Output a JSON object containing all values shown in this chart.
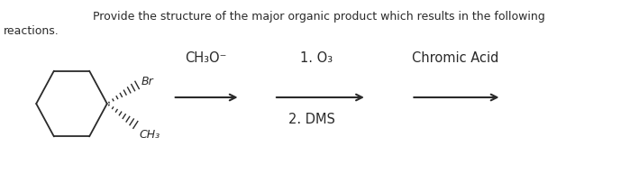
{
  "title_line1": "Provide the structure of the major organic product which results in the following",
  "title_line2": "reactions.",
  "background_color": "#ffffff",
  "text_color": "#2a2a2a",
  "reagent1": "CH₃O⁻",
  "reagent2_line1": "1. O₃",
  "reagent2_line2": "2. DMS",
  "reagent3": "Chromic Acid",
  "fs_title": 9.0,
  "fs_chem": 10.5,
  "fs_label": 9.0
}
